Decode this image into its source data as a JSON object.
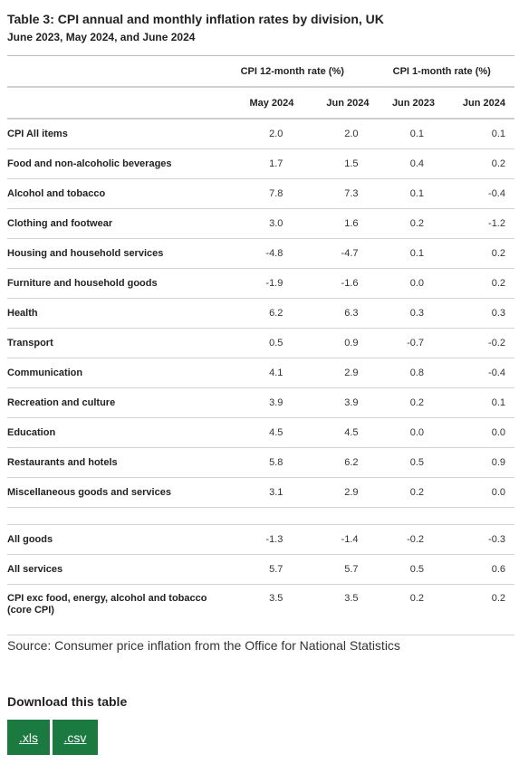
{
  "title": "Table 3: CPI annual and monthly inflation rates by division, UK",
  "subtitle": "June 2023, May 2024, and June 2024",
  "groups": {
    "annual": "CPI 12-month rate (%)",
    "monthly": "CPI 1-month rate (%)"
  },
  "columns": [
    "May 2024",
    "Jun 2024",
    "Jun 2023",
    "Jun 2024"
  ],
  "rows": [
    {
      "label": "CPI All items",
      "v": [
        "2.0",
        "2.0",
        "0.1",
        "0.1"
      ]
    },
    {
      "label": "Food and non-alcoholic beverages",
      "v": [
        "1.7",
        "1.5",
        "0.4",
        "0.2"
      ]
    },
    {
      "label": "Alcohol and tobacco",
      "v": [
        "7.8",
        "7.3",
        "0.1",
        "-0.4"
      ]
    },
    {
      "label": "Clothing and footwear",
      "v": [
        "3.0",
        "1.6",
        "0.2",
        "-1.2"
      ]
    },
    {
      "label": "Housing and household services",
      "v": [
        "-4.8",
        "-4.7",
        "0.1",
        "0.2"
      ]
    },
    {
      "label": "Furniture and household goods",
      "v": [
        "-1.9",
        "-1.6",
        "0.0",
        "0.2"
      ]
    },
    {
      "label": "Health",
      "v": [
        "6.2",
        "6.3",
        "0.3",
        "0.3"
      ]
    },
    {
      "label": "Transport",
      "v": [
        "0.5",
        "0.9",
        "-0.7",
        "-0.2"
      ]
    },
    {
      "label": "Communication",
      "v": [
        "4.1",
        "2.9",
        "0.8",
        "-0.4"
      ]
    },
    {
      "label": "Recreation and culture",
      "v": [
        "3.9",
        "3.9",
        "0.2",
        "0.1"
      ]
    },
    {
      "label": "Education",
      "v": [
        "4.5",
        "4.5",
        "0.0",
        "0.0"
      ]
    },
    {
      "label": "Restaurants and hotels",
      "v": [
        "5.8",
        "6.2",
        "0.5",
        "0.9"
      ]
    },
    {
      "label": "Miscellaneous goods and services",
      "v": [
        "3.1",
        "2.9",
        "0.2",
        "0.0"
      ]
    }
  ],
  "summary_rows": [
    {
      "label": "All goods",
      "v": [
        "-1.3",
        "-1.4",
        "-0.2",
        "-0.3"
      ]
    },
    {
      "label": "All services",
      "v": [
        "5.7",
        "5.7",
        "0.5",
        "0.6"
      ]
    },
    {
      "label": "CPI exc food, energy, alcohol and tobacco (core CPI)",
      "v": [
        "3.5",
        "3.5",
        "0.2",
        "0.2"
      ]
    }
  ],
  "source": "Source: Consumer price inflation from the Office for National Statistics",
  "download": {
    "title": "Download this table",
    "xls": ".xls",
    "csv": ".csv"
  },
  "colors": {
    "button": "#1b7a3f"
  }
}
